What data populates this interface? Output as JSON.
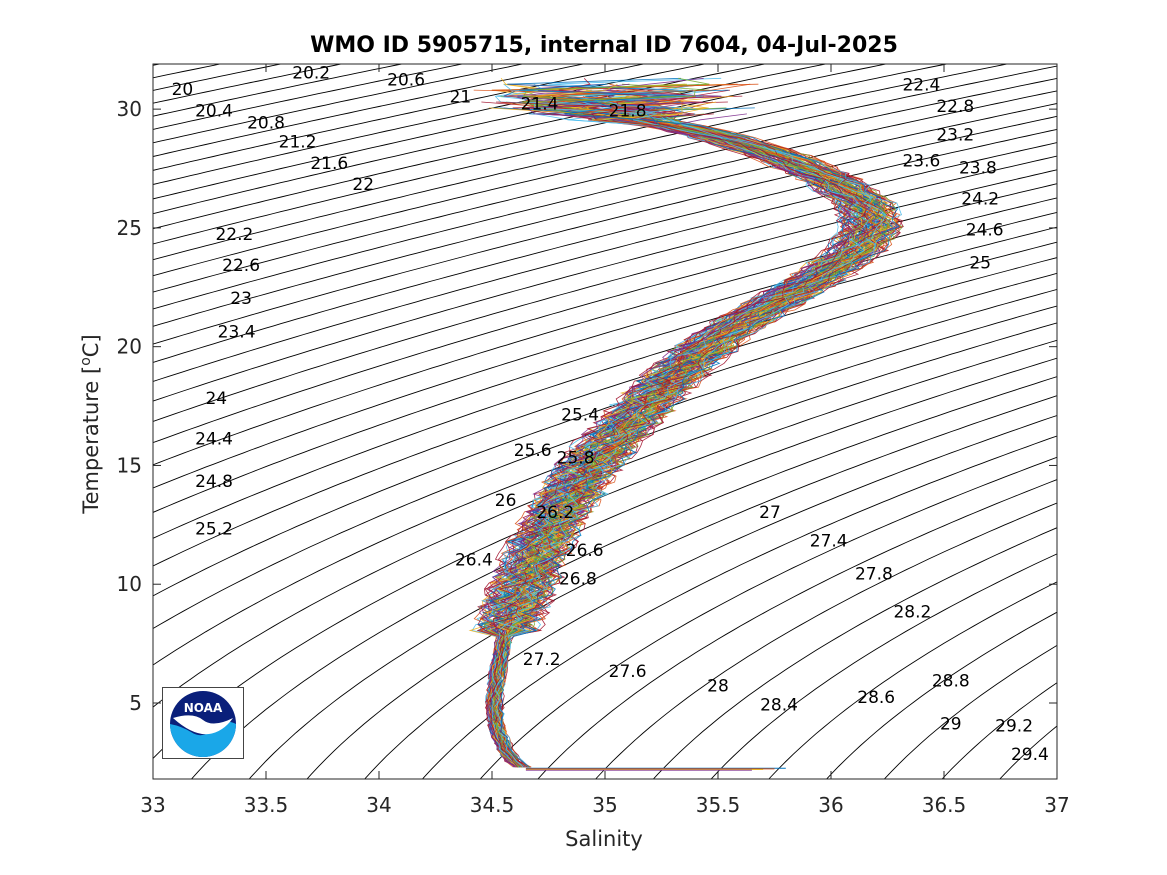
{
  "chart_data": {
    "type": "line",
    "title": "WMO ID 5905715, internal ID 7604, 04-Jul-2025",
    "xlabel": "Salinity",
    "ylabel_prefix": "Temperature [",
    "ylabel_super": "o",
    "ylabel_suffix": "C]",
    "xlim": [
      33,
      37
    ],
    "ylim": [
      1.8,
      31.9
    ],
    "xticks": [
      "33",
      "33.5",
      "34",
      "34.5",
      "35",
      "35.5",
      "36",
      "36.5",
      "37"
    ],
    "yticks": [
      "5",
      "10",
      "15",
      "20",
      "25",
      "30"
    ],
    "xtick_values": [
      33,
      33.5,
      34,
      34.5,
      35,
      35.5,
      36,
      36.5,
      37
    ],
    "ytick_values": [
      5,
      10,
      15,
      20,
      25,
      30
    ],
    "grid": false,
    "legend": "none",
    "density_contour_interval": 0.2,
    "density_contour_range": [
      19.6,
      30.0
    ],
    "density_contour_color": "#000000",
    "profile_count": 120,
    "profile_colors": [
      "#0072bd",
      "#d95319",
      "#edb120",
      "#7e2f8e",
      "#77ac30",
      "#4dbeee",
      "#a2142f"
    ],
    "mean_profile": {
      "T": [
        2.2,
        2.5,
        3.0,
        4.0,
        5.0,
        6.0,
        7.0,
        8.0,
        9.0,
        10.0,
        11.0,
        12.0,
        13.0,
        14.0,
        15.0,
        16.0,
        17.0,
        18.0,
        19.0,
        20.0,
        21.0,
        22.0,
        23.0,
        24.0,
        25.0,
        26.0,
        27.0,
        28.0,
        29.0,
        29.5,
        30.0,
        30.5
      ],
      "S": [
        34.65,
        34.6,
        34.56,
        34.52,
        34.51,
        34.52,
        34.54,
        34.56,
        34.6,
        34.64,
        34.68,
        34.73,
        34.79,
        34.86,
        34.93,
        35.02,
        35.12,
        35.22,
        35.33,
        35.45,
        35.6,
        35.78,
        35.96,
        36.1,
        36.18,
        36.15,
        36.0,
        35.78,
        35.45,
        35.2,
        34.95,
        34.8
      ]
    },
    "surface_spread_S": [
      34.4,
      35.7
    ],
    "bottom_line": {
      "T": 2.25,
      "S": [
        34.65,
        35.8
      ]
    },
    "contour_labels": [
      {
        "text": "20",
        "s": 33.13,
        "t": 30.8
      },
      {
        "text": "20.2",
        "s": 33.7,
        "t": 31.5
      },
      {
        "text": "20.6",
        "s": 34.12,
        "t": 31.2
      },
      {
        "text": "21",
        "s": 34.36,
        "t": 30.5
      },
      {
        "text": "21.4",
        "s": 34.71,
        "t": 30.2
      },
      {
        "text": "21.8",
        "s": 35.1,
        "t": 29.9
      },
      {
        "text": "20.4",
        "s": 33.27,
        "t": 29.9
      },
      {
        "text": "20.8",
        "s": 33.5,
        "t": 29.4
      },
      {
        "text": "21.2",
        "s": 33.64,
        "t": 28.6
      },
      {
        "text": "21.6",
        "s": 33.78,
        "t": 27.7
      },
      {
        "text": "22",
        "s": 33.93,
        "t": 26.8
      },
      {
        "text": "22.2",
        "s": 33.36,
        "t": 24.7
      },
      {
        "text": "22.6",
        "s": 33.39,
        "t": 23.4
      },
      {
        "text": "23",
        "s": 33.39,
        "t": 22.0
      },
      {
        "text": "23.4",
        "s": 33.37,
        "t": 20.6
      },
      {
        "text": "24",
        "s": 33.28,
        "t": 17.8
      },
      {
        "text": "24.4",
        "s": 33.27,
        "t": 16.1
      },
      {
        "text": "24.8",
        "s": 33.27,
        "t": 14.3
      },
      {
        "text": "25.2",
        "s": 33.27,
        "t": 12.3
      },
      {
        "text": "22.4",
        "s": 36.4,
        "t": 31.0
      },
      {
        "text": "22.8",
        "s": 36.55,
        "t": 30.1
      },
      {
        "text": "23.2",
        "s": 36.55,
        "t": 28.9
      },
      {
        "text": "23.6",
        "s": 36.4,
        "t": 27.8
      },
      {
        "text": "23.8",
        "s": 36.65,
        "t": 27.5
      },
      {
        "text": "24.2",
        "s": 36.66,
        "t": 26.2
      },
      {
        "text": "24.6",
        "s": 36.68,
        "t": 24.9
      },
      {
        "text": "25",
        "s": 36.66,
        "t": 23.5
      },
      {
        "text": "25.4",
        "s": 34.89,
        "t": 17.1
      },
      {
        "text": "25.6",
        "s": 34.68,
        "t": 15.6
      },
      {
        "text": "25.8",
        "s": 34.87,
        "t": 15.3
      },
      {
        "text": "26",
        "s": 34.56,
        "t": 13.5
      },
      {
        "text": "26.2",
        "s": 34.78,
        "t": 13.0
      },
      {
        "text": "26.4",
        "s": 34.42,
        "t": 11.0
      },
      {
        "text": "26.6",
        "s": 34.91,
        "t": 11.4
      },
      {
        "text": "26.8",
        "s": 34.88,
        "t": 10.2
      },
      {
        "text": "27",
        "s": 35.73,
        "t": 13.0
      },
      {
        "text": "27.4",
        "s": 35.99,
        "t": 11.8
      },
      {
        "text": "27.8",
        "s": 36.19,
        "t": 10.4
      },
      {
        "text": "28.2",
        "s": 36.36,
        "t": 8.8
      },
      {
        "text": "27.2",
        "s": 34.72,
        "t": 6.8
      },
      {
        "text": "27.6",
        "s": 35.1,
        "t": 6.3
      },
      {
        "text": "28",
        "s": 35.5,
        "t": 5.7
      },
      {
        "text": "28.4",
        "s": 35.77,
        "t": 4.9
      },
      {
        "text": "28.6",
        "s": 36.2,
        "t": 5.2
      },
      {
        "text": "28.8",
        "s": 36.53,
        "t": 5.9
      },
      {
        "text": "29",
        "s": 36.53,
        "t": 4.1
      },
      {
        "text": "29.2",
        "s": 36.81,
        "t": 4.0
      },
      {
        "text": "29.4",
        "s": 36.88,
        "t": 2.8
      }
    ]
  },
  "logo": {
    "text": "NOAA",
    "colors": {
      "dark": "#0a1f7a",
      "light": "#1aa7e8"
    }
  }
}
